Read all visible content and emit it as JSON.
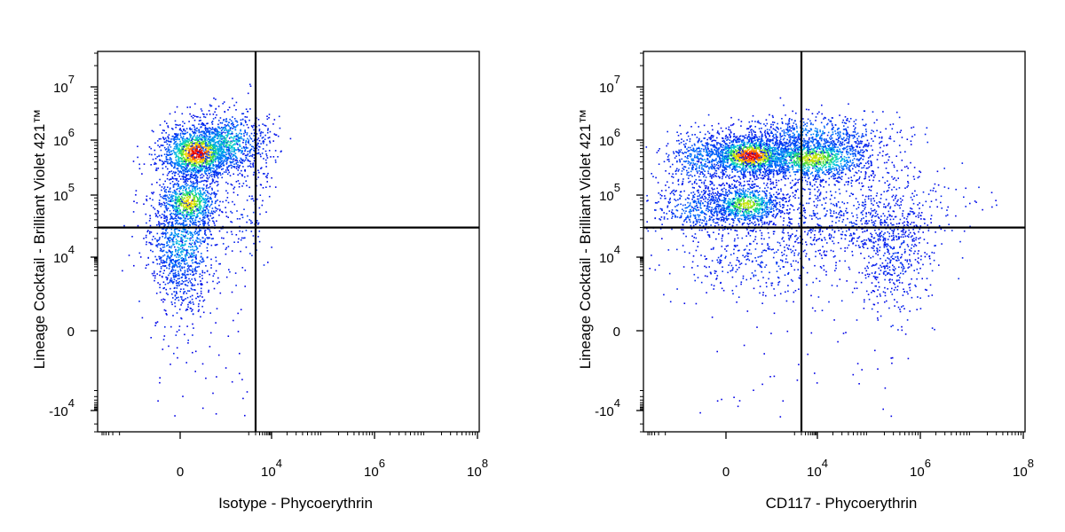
{
  "chart_data": [
    {
      "type": "scatter",
      "subtype": "flow-cytometry-density-dot-plot",
      "xlabel": "Isotype - Phycoerythrin",
      "ylabel": "Lineage Cocktail - Brilliant Violet 421™",
      "x_scale": "biexponential",
      "y_scale": "biexponential",
      "x_ticks": [
        {
          "value": 0,
          "base": "0",
          "exp": ""
        },
        {
          "value": 10000,
          "base": "10",
          "exp": "4"
        },
        {
          "value": 1000000,
          "base": "10",
          "exp": "6"
        },
        {
          "value": 100000000,
          "base": "10",
          "exp": "8"
        }
      ],
      "y_ticks": [
        {
          "value": -10000,
          "base": "-10",
          "exp": "4"
        },
        {
          "value": 0,
          "base": "0",
          "exp": ""
        },
        {
          "value": 10000,
          "base": "10",
          "exp": "4"
        },
        {
          "value": 100000,
          "base": "10",
          "exp": "5"
        },
        {
          "value": 1000000,
          "base": "10",
          "exp": "6"
        },
        {
          "value": 10000000,
          "base": "10",
          "exp": "7"
        }
      ],
      "quadrant_gate": {
        "x": 2000,
        "y": 30000
      },
      "populations": [
        {
          "x_center": 0,
          "y_center": 450000,
          "density": "high"
        },
        {
          "x_center": 0,
          "y_center": 60000,
          "density": "medium"
        },
        {
          "x_center": 0,
          "y_center": 10000,
          "density": "low"
        }
      ]
    },
    {
      "type": "scatter",
      "subtype": "flow-cytometry-density-dot-plot",
      "xlabel": "CD117 - Phycoerythrin",
      "ylabel": "Lineage Cocktail - Brilliant Violet 421™",
      "x_scale": "biexponential",
      "y_scale": "biexponential",
      "x_ticks": [
        {
          "value": 0,
          "base": "0",
          "exp": ""
        },
        {
          "value": 10000,
          "base": "10",
          "exp": "4"
        },
        {
          "value": 1000000,
          "base": "10",
          "exp": "6"
        },
        {
          "value": 100000000,
          "base": "10",
          "exp": "8"
        }
      ],
      "y_ticks": [
        {
          "value": -10000,
          "base": "-10",
          "exp": "4"
        },
        {
          "value": 0,
          "base": "0",
          "exp": ""
        },
        {
          "value": 10000,
          "base": "10",
          "exp": "4"
        },
        {
          "value": 100000,
          "base": "10",
          "exp": "5"
        },
        {
          "value": 1000000,
          "base": "10",
          "exp": "6"
        },
        {
          "value": 10000000,
          "base": "10",
          "exp": "7"
        }
      ],
      "quadrant_gate": {
        "x": 2000,
        "y": 30000
      },
      "populations": [
        {
          "x_center": 0,
          "y_center": 400000,
          "density": "high"
        },
        {
          "x_center": 10000,
          "y_center": 350000,
          "density": "medium"
        },
        {
          "x_center": 0,
          "y_center": 60000,
          "density": "medium"
        },
        {
          "x_center": 300000,
          "y_center": 15000,
          "density": "low"
        }
      ]
    }
  ]
}
